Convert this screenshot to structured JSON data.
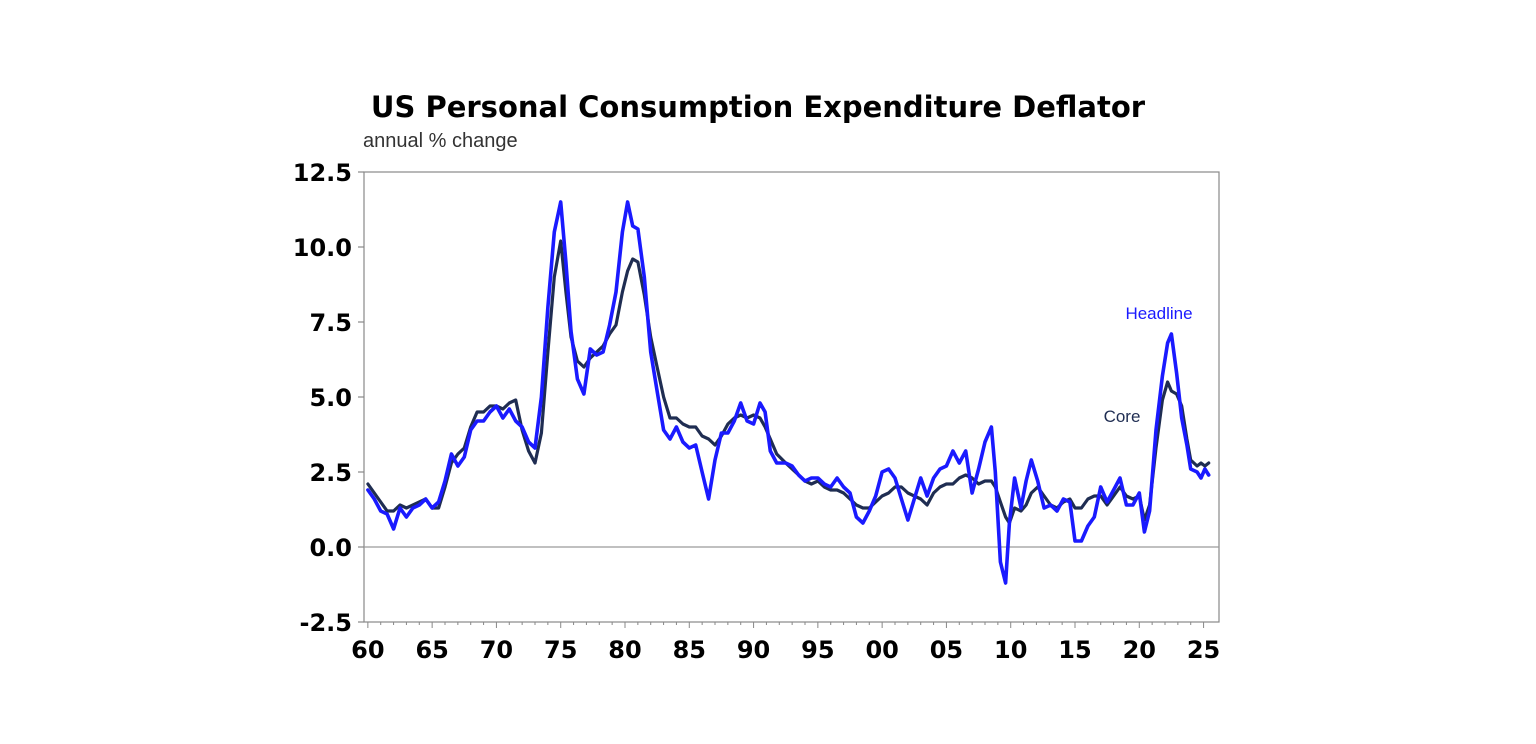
{
  "chart_data": {
    "type": "line",
    "title": "US Personal Consumption Expenditure Deflator",
    "subtitle": "annual % change",
    "xlabel": "",
    "ylabel": "",
    "xlim": [
      1959.7,
      2026.2
    ],
    "ylim": [
      -2.5,
      12.5
    ],
    "yticks": [
      "12.5",
      "10.0",
      "7.5",
      "5.0",
      "2.5",
      "0.0",
      "-2.5"
    ],
    "ytick_values": [
      12.5,
      10.0,
      7.5,
      5.0,
      2.5,
      0.0,
      -2.5
    ],
    "xticks": [
      "60",
      "65",
      "70",
      "75",
      "80",
      "85",
      "90",
      "95",
      "00",
      "05",
      "10",
      "15",
      "20",
      "25"
    ],
    "xtick_values": [
      1960,
      1965,
      1970,
      1975,
      1980,
      1985,
      1990,
      1995,
      2000,
      2005,
      2010,
      2015,
      2020,
      2025
    ],
    "grid": false,
    "zero_line": true,
    "colors": {
      "headline": "#1a1aff",
      "core": "#1f2d52",
      "axis": "#888888"
    },
    "series": [
      {
        "name": "Headline",
        "color": "#1a1aff",
        "points": [
          [
            1960.0,
            1.9
          ],
          [
            1960.5,
            1.6
          ],
          [
            1961.0,
            1.2
          ],
          [
            1961.5,
            1.1
          ],
          [
            1962.0,
            0.6
          ],
          [
            1962.5,
            1.3
          ],
          [
            1963.0,
            1.0
          ],
          [
            1963.5,
            1.3
          ],
          [
            1964.0,
            1.4
          ],
          [
            1964.5,
            1.6
          ],
          [
            1965.0,
            1.3
          ],
          [
            1965.5,
            1.5
          ],
          [
            1966.0,
            2.2
          ],
          [
            1966.5,
            3.1
          ],
          [
            1967.0,
            2.7
          ],
          [
            1967.5,
            3.0
          ],
          [
            1968.0,
            3.9
          ],
          [
            1968.5,
            4.2
          ],
          [
            1969.0,
            4.2
          ],
          [
            1969.5,
            4.5
          ],
          [
            1970.0,
            4.7
          ],
          [
            1970.5,
            4.3
          ],
          [
            1971.0,
            4.6
          ],
          [
            1971.5,
            4.2
          ],
          [
            1972.0,
            4.0
          ],
          [
            1972.5,
            3.5
          ],
          [
            1973.0,
            3.3
          ],
          [
            1973.5,
            5.0
          ],
          [
            1974.0,
            8.0
          ],
          [
            1974.5,
            10.5
          ],
          [
            1975.0,
            11.5
          ],
          [
            1975.4,
            9.5
          ],
          [
            1975.8,
            7.2
          ],
          [
            1976.3,
            5.6
          ],
          [
            1976.8,
            5.1
          ],
          [
            1977.3,
            6.6
          ],
          [
            1977.8,
            6.4
          ],
          [
            1978.3,
            6.5
          ],
          [
            1978.8,
            7.4
          ],
          [
            1979.3,
            8.5
          ],
          [
            1979.8,
            10.5
          ],
          [
            1980.2,
            11.5
          ],
          [
            1980.6,
            10.7
          ],
          [
            1981.0,
            10.6
          ],
          [
            1981.5,
            9.0
          ],
          [
            1982.0,
            6.5
          ],
          [
            1982.5,
            5.2
          ],
          [
            1983.0,
            3.9
          ],
          [
            1983.5,
            3.6
          ],
          [
            1984.0,
            4.0
          ],
          [
            1984.5,
            3.5
          ],
          [
            1985.0,
            3.3
          ],
          [
            1985.5,
            3.4
          ],
          [
            1986.0,
            2.5
          ],
          [
            1986.5,
            1.6
          ],
          [
            1987.0,
            2.9
          ],
          [
            1987.5,
            3.8
          ],
          [
            1988.0,
            3.8
          ],
          [
            1988.5,
            4.2
          ],
          [
            1989.0,
            4.8
          ],
          [
            1989.5,
            4.2
          ],
          [
            1990.0,
            4.1
          ],
          [
            1990.5,
            4.8
          ],
          [
            1990.9,
            4.5
          ],
          [
            1991.3,
            3.2
          ],
          [
            1991.8,
            2.8
          ],
          [
            1992.5,
            2.8
          ],
          [
            1993.0,
            2.7
          ],
          [
            1993.5,
            2.4
          ],
          [
            1994.0,
            2.2
          ],
          [
            1994.5,
            2.3
          ],
          [
            1995.0,
            2.3
          ],
          [
            1995.5,
            2.1
          ],
          [
            1996.0,
            2.0
          ],
          [
            1996.5,
            2.3
          ],
          [
            1997.0,
            2.0
          ],
          [
            1997.5,
            1.8
          ],
          [
            1998.0,
            1.0
          ],
          [
            1998.5,
            0.8
          ],
          [
            1999.0,
            1.2
          ],
          [
            1999.5,
            1.7
          ],
          [
            2000.0,
            2.5
          ],
          [
            2000.5,
            2.6
          ],
          [
            2001.0,
            2.3
          ],
          [
            2001.5,
            1.6
          ],
          [
            2002.0,
            0.9
          ],
          [
            2002.5,
            1.6
          ],
          [
            2003.0,
            2.3
          ],
          [
            2003.5,
            1.7
          ],
          [
            2004.0,
            2.3
          ],
          [
            2004.5,
            2.6
          ],
          [
            2005.0,
            2.7
          ],
          [
            2005.5,
            3.2
          ],
          [
            2006.0,
            2.8
          ],
          [
            2006.5,
            3.2
          ],
          [
            2007.0,
            1.8
          ],
          [
            2007.5,
            2.6
          ],
          [
            2008.0,
            3.5
          ],
          [
            2008.5,
            4.0
          ],
          [
            2008.8,
            2.5
          ],
          [
            2009.2,
            -0.5
          ],
          [
            2009.6,
            -1.2
          ],
          [
            2009.9,
            0.8
          ],
          [
            2010.3,
            2.3
          ],
          [
            2010.8,
            1.3
          ],
          [
            2011.2,
            2.2
          ],
          [
            2011.6,
            2.9
          ],
          [
            2012.1,
            2.2
          ],
          [
            2012.6,
            1.3
          ],
          [
            2013.1,
            1.4
          ],
          [
            2013.6,
            1.2
          ],
          [
            2014.1,
            1.6
          ],
          [
            2014.6,
            1.5
          ],
          [
            2015.0,
            0.2
          ],
          [
            2015.5,
            0.2
          ],
          [
            2016.0,
            0.7
          ],
          [
            2016.5,
            1.0
          ],
          [
            2017.0,
            2.0
          ],
          [
            2017.5,
            1.5
          ],
          [
            2018.0,
            1.9
          ],
          [
            2018.5,
            2.3
          ],
          [
            2019.0,
            1.4
          ],
          [
            2019.5,
            1.4
          ],
          [
            2020.0,
            1.8
          ],
          [
            2020.4,
            0.5
          ],
          [
            2020.8,
            1.2
          ],
          [
            2021.3,
            3.9
          ],
          [
            2021.8,
            5.7
          ],
          [
            2022.2,
            6.8
          ],
          [
            2022.5,
            7.1
          ],
          [
            2022.9,
            5.8
          ],
          [
            2023.3,
            4.3
          ],
          [
            2023.7,
            3.4
          ],
          [
            2024.0,
            2.6
          ],
          [
            2024.5,
            2.5
          ],
          [
            2024.8,
            2.3
          ],
          [
            2025.1,
            2.6
          ],
          [
            2025.4,
            2.4
          ]
        ]
      },
      {
        "name": "Core",
        "color": "#1f2d52",
        "points": [
          [
            1960.0,
            2.1
          ],
          [
            1960.5,
            1.8
          ],
          [
            1961.0,
            1.5
          ],
          [
            1961.5,
            1.2
          ],
          [
            1962.0,
            1.2
          ],
          [
            1962.5,
            1.4
          ],
          [
            1963.0,
            1.3
          ],
          [
            1963.5,
            1.4
          ],
          [
            1964.0,
            1.5
          ],
          [
            1964.5,
            1.6
          ],
          [
            1965.0,
            1.3
          ],
          [
            1965.5,
            1.3
          ],
          [
            1966.0,
            2.0
          ],
          [
            1966.5,
            2.8
          ],
          [
            1967.0,
            3.1
          ],
          [
            1967.5,
            3.3
          ],
          [
            1968.0,
            4.0
          ],
          [
            1968.5,
            4.5
          ],
          [
            1969.0,
            4.5
          ],
          [
            1969.5,
            4.7
          ],
          [
            1970.0,
            4.7
          ],
          [
            1970.5,
            4.6
          ],
          [
            1971.0,
            4.8
          ],
          [
            1971.5,
            4.9
          ],
          [
            1972.0,
            3.9
          ],
          [
            1972.5,
            3.2
          ],
          [
            1973.0,
            2.8
          ],
          [
            1973.5,
            3.8
          ],
          [
            1974.0,
            6.5
          ],
          [
            1974.5,
            9.0
          ],
          [
            1975.0,
            10.2
          ],
          [
            1975.4,
            8.5
          ],
          [
            1975.8,
            7.0
          ],
          [
            1976.3,
            6.2
          ],
          [
            1976.8,
            6.0
          ],
          [
            1977.3,
            6.3
          ],
          [
            1977.8,
            6.5
          ],
          [
            1978.3,
            6.7
          ],
          [
            1978.8,
            7.1
          ],
          [
            1979.3,
            7.4
          ],
          [
            1979.8,
            8.5
          ],
          [
            1980.2,
            9.2
          ],
          [
            1980.6,
            9.6
          ],
          [
            1981.0,
            9.5
          ],
          [
            1981.5,
            8.4
          ],
          [
            1982.0,
            7.0
          ],
          [
            1982.5,
            6.0
          ],
          [
            1983.0,
            5.0
          ],
          [
            1983.5,
            4.3
          ],
          [
            1984.0,
            4.3
          ],
          [
            1984.5,
            4.1
          ],
          [
            1985.0,
            4.0
          ],
          [
            1985.5,
            4.0
          ],
          [
            1986.0,
            3.7
          ],
          [
            1986.5,
            3.6
          ],
          [
            1987.0,
            3.4
          ],
          [
            1987.5,
            3.7
          ],
          [
            1988.0,
            4.1
          ],
          [
            1988.5,
            4.3
          ],
          [
            1989.0,
            4.4
          ],
          [
            1989.5,
            4.3
          ],
          [
            1990.0,
            4.4
          ],
          [
            1990.5,
            4.3
          ],
          [
            1990.9,
            4.0
          ],
          [
            1991.3,
            3.6
          ],
          [
            1991.8,
            3.1
          ],
          [
            1992.5,
            2.8
          ],
          [
            1993.0,
            2.6
          ],
          [
            1993.5,
            2.4
          ],
          [
            1994.0,
            2.2
          ],
          [
            1994.5,
            2.1
          ],
          [
            1995.0,
            2.2
          ],
          [
            1995.5,
            2.0
          ],
          [
            1996.0,
            1.9
          ],
          [
            1996.5,
            1.9
          ],
          [
            1997.0,
            1.8
          ],
          [
            1997.5,
            1.6
          ],
          [
            1998.0,
            1.4
          ],
          [
            1998.5,
            1.3
          ],
          [
            1999.0,
            1.3
          ],
          [
            1999.5,
            1.5
          ],
          [
            2000.0,
            1.7
          ],
          [
            2000.5,
            1.8
          ],
          [
            2001.0,
            2.0
          ],
          [
            2001.5,
            2.0
          ],
          [
            2002.0,
            1.8
          ],
          [
            2002.5,
            1.7
          ],
          [
            2003.0,
            1.6
          ],
          [
            2003.5,
            1.4
          ],
          [
            2004.0,
            1.8
          ],
          [
            2004.5,
            2.0
          ],
          [
            2005.0,
            2.1
          ],
          [
            2005.5,
            2.1
          ],
          [
            2006.0,
            2.3
          ],
          [
            2006.5,
            2.4
          ],
          [
            2007.0,
            2.3
          ],
          [
            2007.5,
            2.1
          ],
          [
            2008.0,
            2.2
          ],
          [
            2008.5,
            2.2
          ],
          [
            2008.8,
            2.0
          ],
          [
            2009.2,
            1.5
          ],
          [
            2009.6,
            1.0
          ],
          [
            2009.9,
            0.8
          ],
          [
            2010.3,
            1.3
          ],
          [
            2010.8,
            1.2
          ],
          [
            2011.2,
            1.4
          ],
          [
            2011.6,
            1.8
          ],
          [
            2012.1,
            2.0
          ],
          [
            2012.6,
            1.7
          ],
          [
            2013.1,
            1.4
          ],
          [
            2013.6,
            1.3
          ],
          [
            2014.1,
            1.5
          ],
          [
            2014.6,
            1.6
          ],
          [
            2015.0,
            1.3
          ],
          [
            2015.5,
            1.3
          ],
          [
            2016.0,
            1.6
          ],
          [
            2016.5,
            1.7
          ],
          [
            2017.0,
            1.7
          ],
          [
            2017.5,
            1.4
          ],
          [
            2018.0,
            1.7
          ],
          [
            2018.5,
            2.0
          ],
          [
            2019.0,
            1.7
          ],
          [
            2019.5,
            1.6
          ],
          [
            2020.0,
            1.7
          ],
          [
            2020.4,
            0.9
          ],
          [
            2020.8,
            1.4
          ],
          [
            2021.3,
            3.3
          ],
          [
            2021.8,
            4.9
          ],
          [
            2022.2,
            5.5
          ],
          [
            2022.5,
            5.2
          ],
          [
            2022.9,
            5.1
          ],
          [
            2023.3,
            4.7
          ],
          [
            2023.7,
            3.6
          ],
          [
            2024.0,
            2.9
          ],
          [
            2024.5,
            2.7
          ],
          [
            2024.8,
            2.8
          ],
          [
            2025.1,
            2.7
          ],
          [
            2025.4,
            2.8
          ]
        ]
      }
    ],
    "annotations": [
      {
        "text": "Headline",
        "color": "#1a1aff",
        "series": "Headline"
      },
      {
        "text": "Core",
        "color": "#1f2d52",
        "series": "Core"
      }
    ]
  }
}
